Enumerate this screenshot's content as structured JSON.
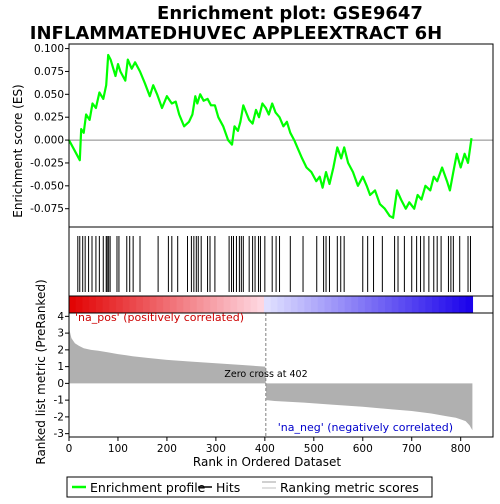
{
  "chart_data": {
    "type": "line",
    "title_line1": "Enrichment plot: GSE9647",
    "title_line2": "INFLAMMATEDHUVEC APPLEEXTRACT 6H",
    "xlabel": "Rank in Ordered Dataset",
    "es_panel": {
      "ylabel": "Enrichment score (ES)",
      "ylim": [
        -0.095,
        0.105
      ],
      "yticks": [
        "0.100",
        "0.075",
        "0.050",
        "0.025",
        "0.000",
        "-0.025",
        "-0.050",
        "-0.075"
      ],
      "ytick_values": [
        0.1,
        0.075,
        0.05,
        0.025,
        0.0,
        -0.025,
        -0.05,
        -0.075
      ]
    },
    "metric_panel": {
      "ylabel": "Ranked list metric (PreRanked)",
      "ylim": [
        -3.2,
        4.2
      ],
      "yticks": [
        "4",
        "3",
        "2",
        "1",
        "0",
        "-1",
        "-2",
        "-3"
      ],
      "ytick_values": [
        4,
        3,
        2,
        1,
        0,
        -1,
        -2,
        -3
      ],
      "pos_label": "'na_pos' (positively correlated)",
      "neg_label": "'na_neg' (negatively correlated)",
      "zero_cross_label": "Zero cross at 402",
      "zero_cross": 402
    },
    "xlim": [
      0,
      866
    ],
    "xticks": [
      "0",
      "100",
      "200",
      "300",
      "400",
      "500",
      "600",
      "700",
      "800"
    ],
    "xtick_values": [
      0,
      100,
      200,
      300,
      400,
      500,
      600,
      700,
      800
    ],
    "n_ranks": 824,
    "enrichment_profile": {
      "x": [
        0,
        10,
        22,
        25,
        30,
        35,
        42,
        48,
        55,
        62,
        70,
        76,
        80,
        85,
        95,
        100,
        105,
        115,
        120,
        128,
        135,
        145,
        155,
        165,
        172,
        180,
        190,
        200,
        210,
        218,
        225,
        235,
        245,
        252,
        258,
        262,
        268,
        275,
        283,
        290,
        298,
        305,
        315,
        325,
        333,
        338,
        345,
        350,
        356,
        362,
        368,
        375,
        382,
        388,
        395,
        402,
        408,
        415,
        422,
        430,
        438,
        445,
        452,
        460,
        468,
        476,
        485,
        495,
        505,
        512,
        518,
        525,
        532,
        540,
        548,
        556,
        562,
        570,
        580,
        590,
        600,
        608,
        615,
        625,
        635,
        645,
        655,
        662,
        670,
        678,
        688,
        695,
        705,
        712,
        720,
        728,
        738,
        745,
        752,
        762,
        772,
        778,
        785,
        792,
        800,
        808,
        815,
        822
      ],
      "values": [
        0.0,
        -0.01,
        -0.022,
        0.012,
        0.008,
        0.028,
        0.022,
        0.04,
        0.035,
        0.052,
        0.045,
        0.06,
        0.093,
        0.088,
        0.07,
        0.083,
        0.075,
        0.065,
        0.088,
        0.078,
        0.085,
        0.075,
        0.062,
        0.048,
        0.06,
        0.05,
        0.035,
        0.048,
        0.04,
        0.042,
        0.028,
        0.015,
        0.02,
        0.028,
        0.048,
        0.04,
        0.05,
        0.043,
        0.045,
        0.038,
        0.038,
        0.025,
        0.015,
        0.0,
        -0.005,
        0.015,
        0.01,
        0.02,
        0.038,
        0.03,
        0.022,
        0.018,
        0.033,
        0.025,
        0.04,
        0.035,
        0.028,
        0.04,
        0.03,
        0.025,
        0.015,
        0.02,
        0.008,
        0.0,
        -0.01,
        -0.02,
        -0.03,
        -0.035,
        -0.045,
        -0.04,
        -0.052,
        -0.035,
        -0.048,
        -0.03,
        -0.008,
        -0.02,
        -0.008,
        -0.025,
        -0.035,
        -0.05,
        -0.04,
        -0.05,
        -0.06,
        -0.055,
        -0.07,
        -0.075,
        -0.083,
        -0.085,
        -0.055,
        -0.065,
        -0.075,
        -0.068,
        -0.075,
        -0.06,
        -0.065,
        -0.05,
        -0.055,
        -0.04,
        -0.045,
        -0.03,
        -0.045,
        -0.055,
        -0.035,
        -0.015,
        -0.03,
        -0.015,
        -0.025,
        0.002
      ]
    },
    "hits": [
      18,
      22,
      28,
      33,
      40,
      47,
      55,
      62,
      70,
      76,
      78,
      81,
      84,
      98,
      102,
      118,
      124,
      131,
      145,
      182,
      203,
      210,
      222,
      242,
      250,
      255,
      260,
      264,
      270,
      283,
      288,
      298,
      327,
      332,
      336,
      342,
      348,
      352,
      356,
      368,
      375,
      380,
      387,
      391,
      400,
      415,
      423,
      430,
      452,
      478,
      506,
      520,
      525,
      532,
      548,
      555,
      562,
      600,
      610,
      622,
      640,
      665,
      672,
      685,
      700,
      710,
      718,
      725,
      735,
      745,
      752,
      760,
      775,
      780,
      785,
      798,
      815,
      820
    ],
    "metric_profile": {
      "x": [
        0,
        5,
        12,
        20,
        30,
        45,
        60,
        80,
        100,
        130,
        160,
        200,
        250,
        300,
        350,
        401,
        402,
        403,
        420,
        480,
        540,
        600,
        660,
        700,
        740,
        770,
        790,
        800,
        810,
        818,
        824
      ],
      "values": [
        3.3,
        2.7,
        2.4,
        2.25,
        2.1,
        2.0,
        1.95,
        1.85,
        1.75,
        1.62,
        1.52,
        1.4,
        1.3,
        1.2,
        1.1,
        1.0,
        0.0,
        -1.0,
        -1.05,
        -1.15,
        -1.28,
        -1.4,
        -1.55,
        -1.65,
        -1.8,
        -1.95,
        -2.05,
        -2.15,
        -2.25,
        -2.5,
        -2.8
      ]
    },
    "colors": {
      "enrichment_line": "#00ff00",
      "hits": "#000000",
      "metric_fill": "#b0b0b0",
      "pos_label": "#cc0000",
      "neg_label": "#0000cc",
      "zero_cross_line": "#808080",
      "zero_line_es": "#888888",
      "bar_pos": "#e00000",
      "bar_neg": "#2000e0"
    },
    "legend": {
      "placement": "bottom",
      "items": [
        {
          "label": "Enrichment profile",
          "kind": "line",
          "color": "#00ff00"
        },
        {
          "label": "Hits",
          "kind": "line",
          "color": "#000000"
        },
        {
          "label": "Ranking metric scores",
          "kind": "line",
          "color": "#c0c0c0"
        }
      ]
    }
  }
}
